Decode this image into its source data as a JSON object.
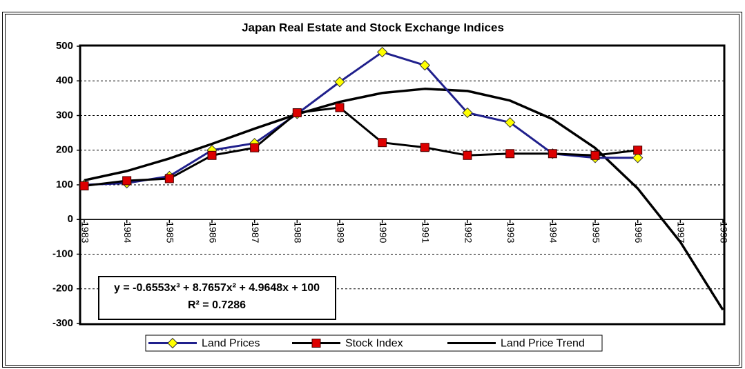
{
  "chart_data": {
    "type": "line",
    "title": "Japan Real Estate and Stock Exchange Indices",
    "categories": [
      "1983",
      "1984",
      "1985",
      "1986",
      "1987",
      "1988",
      "1989",
      "1990",
      "1991",
      "1992",
      "1993",
      "1994",
      "1995",
      "1996",
      "1997",
      "1998"
    ],
    "series": [
      {
        "name": "Land Prices",
        "color": "#20208c",
        "marker": "diamond",
        "marker_color": "#ffff00",
        "values": [
          100,
          105,
          125,
          200,
          220,
          305,
          397,
          483,
          445,
          308,
          280,
          190,
          178,
          178,
          null,
          null
        ]
      },
      {
        "name": "Stock Index",
        "color": "#000000",
        "marker": "square",
        "marker_color": "#dd0000",
        "values": [
          97,
          112,
          118,
          185,
          207,
          308,
          323,
          222,
          208,
          185,
          190,
          190,
          185,
          200,
          null,
          null
        ]
      },
      {
        "name": "Land Price Trend",
        "color": "#000000",
        "marker": "none",
        "values": [
          113.1,
          139.8,
          176.1,
          218.2,
          262.1,
          303.8,
          339.5,
          365.2,
          377.0,
          370.9,
          343.1,
          289.5,
          206.3,
          89.4,
          -64.9,
          -260.7
        ]
      }
    ],
    "annotations": [
      "y = -0.6553x³ + 8.7657x² + 4.9648x + 100",
      "R² = 0.7286"
    ],
    "ylim": [
      -300,
      500
    ],
    "yticks": [
      -300,
      -200,
      -100,
      0,
      100,
      200,
      300,
      400,
      500
    ],
    "grid": true
  }
}
